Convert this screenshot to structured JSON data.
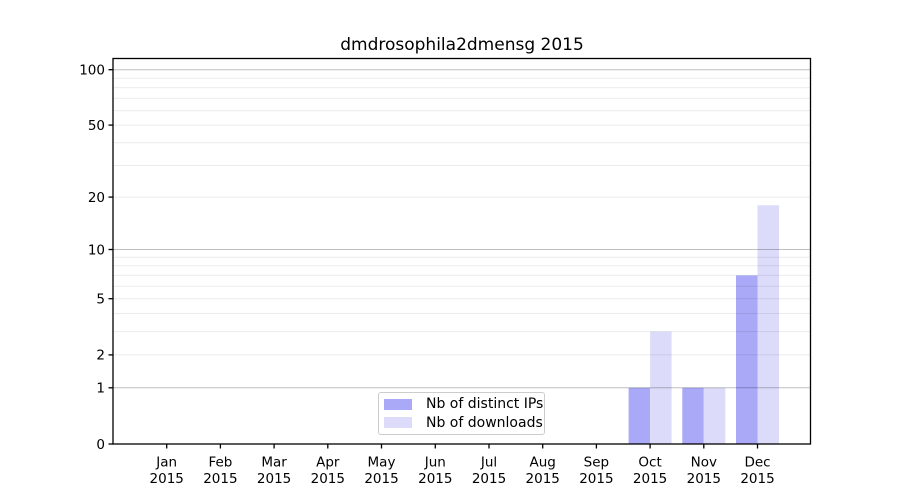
{
  "chart_data": {
    "type": "bar",
    "title": "dmdrosophila2dmensg 2015",
    "categories": [
      "Jan",
      "Feb",
      "Mar",
      "Apr",
      "May",
      "Jun",
      "Jul",
      "Aug",
      "Sep",
      "Oct",
      "Nov",
      "Dec"
    ],
    "x_year_label": "2015",
    "series": [
      {
        "key": "distinct-ips",
        "name": "Nb of distinct IPs",
        "color": "#a9a9f7",
        "values": [
          0,
          0,
          0,
          0,
          0,
          0,
          0,
          0,
          0,
          1,
          1,
          7
        ]
      },
      {
        "key": "downloads",
        "name": "Nb of downloads",
        "color": "#dcdcfa",
        "values": [
          0,
          0,
          0,
          0,
          0,
          0,
          0,
          0,
          0,
          3,
          1,
          18
        ]
      }
    ],
    "yscale": "log10(value+1)",
    "yticks": [
      {
        "label": "0",
        "value": 0
      },
      {
        "label": "1",
        "value": 1
      },
      {
        "label": "2",
        "value": 2
      },
      {
        "label": "5",
        "value": 5
      },
      {
        "label": "10",
        "value": 10
      },
      {
        "label": "20",
        "value": 20
      },
      {
        "label": "50",
        "value": 50
      },
      {
        "label": "100",
        "value": 100
      }
    ],
    "major_grid": [
      1,
      10,
      100
    ],
    "minor_grid": [
      2,
      3,
      4,
      5,
      6,
      7,
      8,
      9,
      20,
      30,
      40,
      50,
      60,
      70,
      80,
      90
    ],
    "ylim_top_value": 115,
    "grid": "on",
    "legend_position": "lower center",
    "colors": {
      "frame": "#000000",
      "text": "#000000",
      "major_grid": "rgba(0,0,0,0.25)",
      "minor_grid": "rgba(0,0,0,0.08)",
      "legend_border": "#cccccc",
      "background": "#ffffff"
    }
  }
}
